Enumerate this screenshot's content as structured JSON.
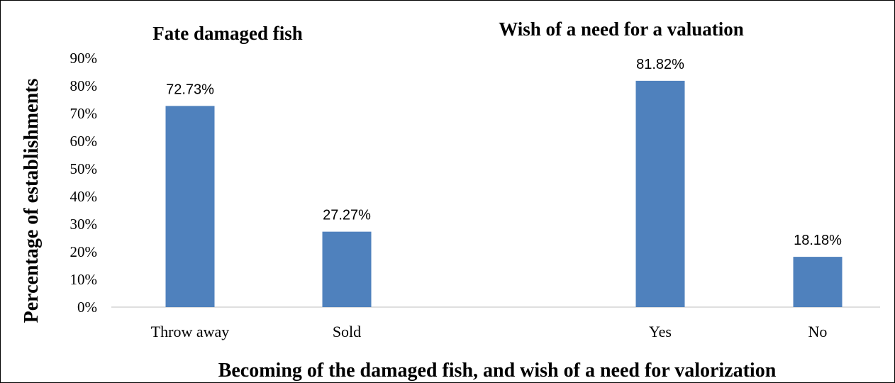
{
  "chart_data": {
    "type": "bar",
    "xlabel": "Becoming of the damaged fish, and wish of a need for valorization",
    "ylabel": "Percentage of establishments",
    "ylim": [
      0,
      90
    ],
    "yticks": [
      "0%",
      "10%",
      "20%",
      "30%",
      "40%",
      "50%",
      "60%",
      "70%",
      "80%",
      "90%"
    ],
    "grid": false,
    "bar_color": "#4F81BD",
    "groups": [
      {
        "title": "Fate damaged fish",
        "categories": [
          "Throw away",
          "Sold"
        ],
        "values": [
          72.73,
          27.27
        ],
        "labels": [
          "72.73%",
          "27.27%"
        ]
      },
      {
        "title": "Wish of a need for a valuation",
        "categories": [
          "Yes",
          "No"
        ],
        "values": [
          81.82,
          18.18
        ],
        "labels": [
          "81.82%",
          "18.18%"
        ]
      }
    ]
  }
}
